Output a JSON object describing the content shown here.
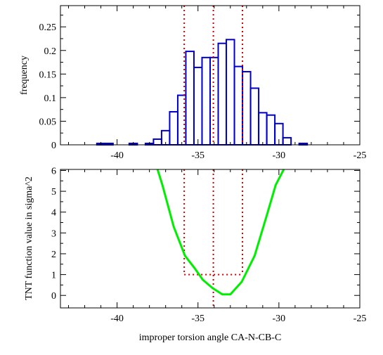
{
  "chart_data": [
    {
      "type": "bar",
      "ylabel": "frequency",
      "xlim": [
        -43.5,
        -25
      ],
      "ylim": [
        0,
        0.295
      ],
      "x_ticks": [
        -40,
        -35,
        -30,
        -25
      ],
      "y_ticks": [
        0,
        0.05,
        0.1,
        0.15,
        0.2,
        0.25
      ],
      "y_tick_labels": [
        "0",
        "0.05",
        "0.1",
        "0.15",
        "0.2",
        "0.25"
      ],
      "grid": false,
      "bin_width": 0.5,
      "bins": [
        {
          "x": -41.0,
          "y": 0.003
        },
        {
          "x": -40.5,
          "y": 0.003
        },
        {
          "x": -39.0,
          "y": 0.003
        },
        {
          "x": -38.0,
          "y": 0.003
        },
        {
          "x": -37.5,
          "y": 0.012
        },
        {
          "x": -37.0,
          "y": 0.03
        },
        {
          "x": -36.5,
          "y": 0.07
        },
        {
          "x": -36.0,
          "y": 0.105
        },
        {
          "x": -35.5,
          "y": 0.198
        },
        {
          "x": -35.0,
          "y": 0.164
        },
        {
          "x": -34.5,
          "y": 0.185
        },
        {
          "x": -34.0,
          "y": 0.185
        },
        {
          "x": -33.5,
          "y": 0.215
        },
        {
          "x": -33.0,
          "y": 0.223
        },
        {
          "x": -32.5,
          "y": 0.166
        },
        {
          "x": -32.0,
          "y": 0.155
        },
        {
          "x": -31.5,
          "y": 0.12
        },
        {
          "x": -31.0,
          "y": 0.068
        },
        {
          "x": -30.5,
          "y": 0.063
        },
        {
          "x": -30.0,
          "y": 0.045
        },
        {
          "x": -29.5,
          "y": 0.015
        },
        {
          "x": -28.5,
          "y": 0.003
        }
      ],
      "vlines": [
        -35.85,
        -34.05,
        -32.25
      ],
      "colors": {
        "bars": "#0000cc",
        "vlines": "#cc0000"
      }
    },
    {
      "type": "line",
      "xlabel": "improper torsion angle CA-N-CB-C",
      "ylabel": "TNT function value in sigma^2",
      "xlim": [
        -43.5,
        -25
      ],
      "ylim": [
        -0.6,
        6.05
      ],
      "x_ticks": [
        -40,
        -35,
        -30,
        -25
      ],
      "y_ticks": [
        0,
        1,
        2,
        3,
        4,
        5,
        6
      ],
      "grid": false,
      "series": [
        {
          "x": [
            -37.5,
            -37.2,
            -36.5,
            -35.8,
            -35.2,
            -34.7,
            -34.1,
            -33.5,
            -33.0,
            -32.3,
            -31.5,
            -30.8,
            -30.2,
            -29.7
          ],
          "y": [
            6.05,
            5.3,
            3.3,
            1.9,
            1.3,
            0.75,
            0.35,
            0.05,
            0.05,
            0.65,
            1.9,
            3.7,
            5.3,
            6.05
          ]
        }
      ],
      "box": {
        "x0": -35.85,
        "x1": -32.25,
        "y": 1.0
      },
      "vline_center": -34.05,
      "colors": {
        "line": "#00ee00",
        "dotted": "#cc0000"
      }
    }
  ]
}
